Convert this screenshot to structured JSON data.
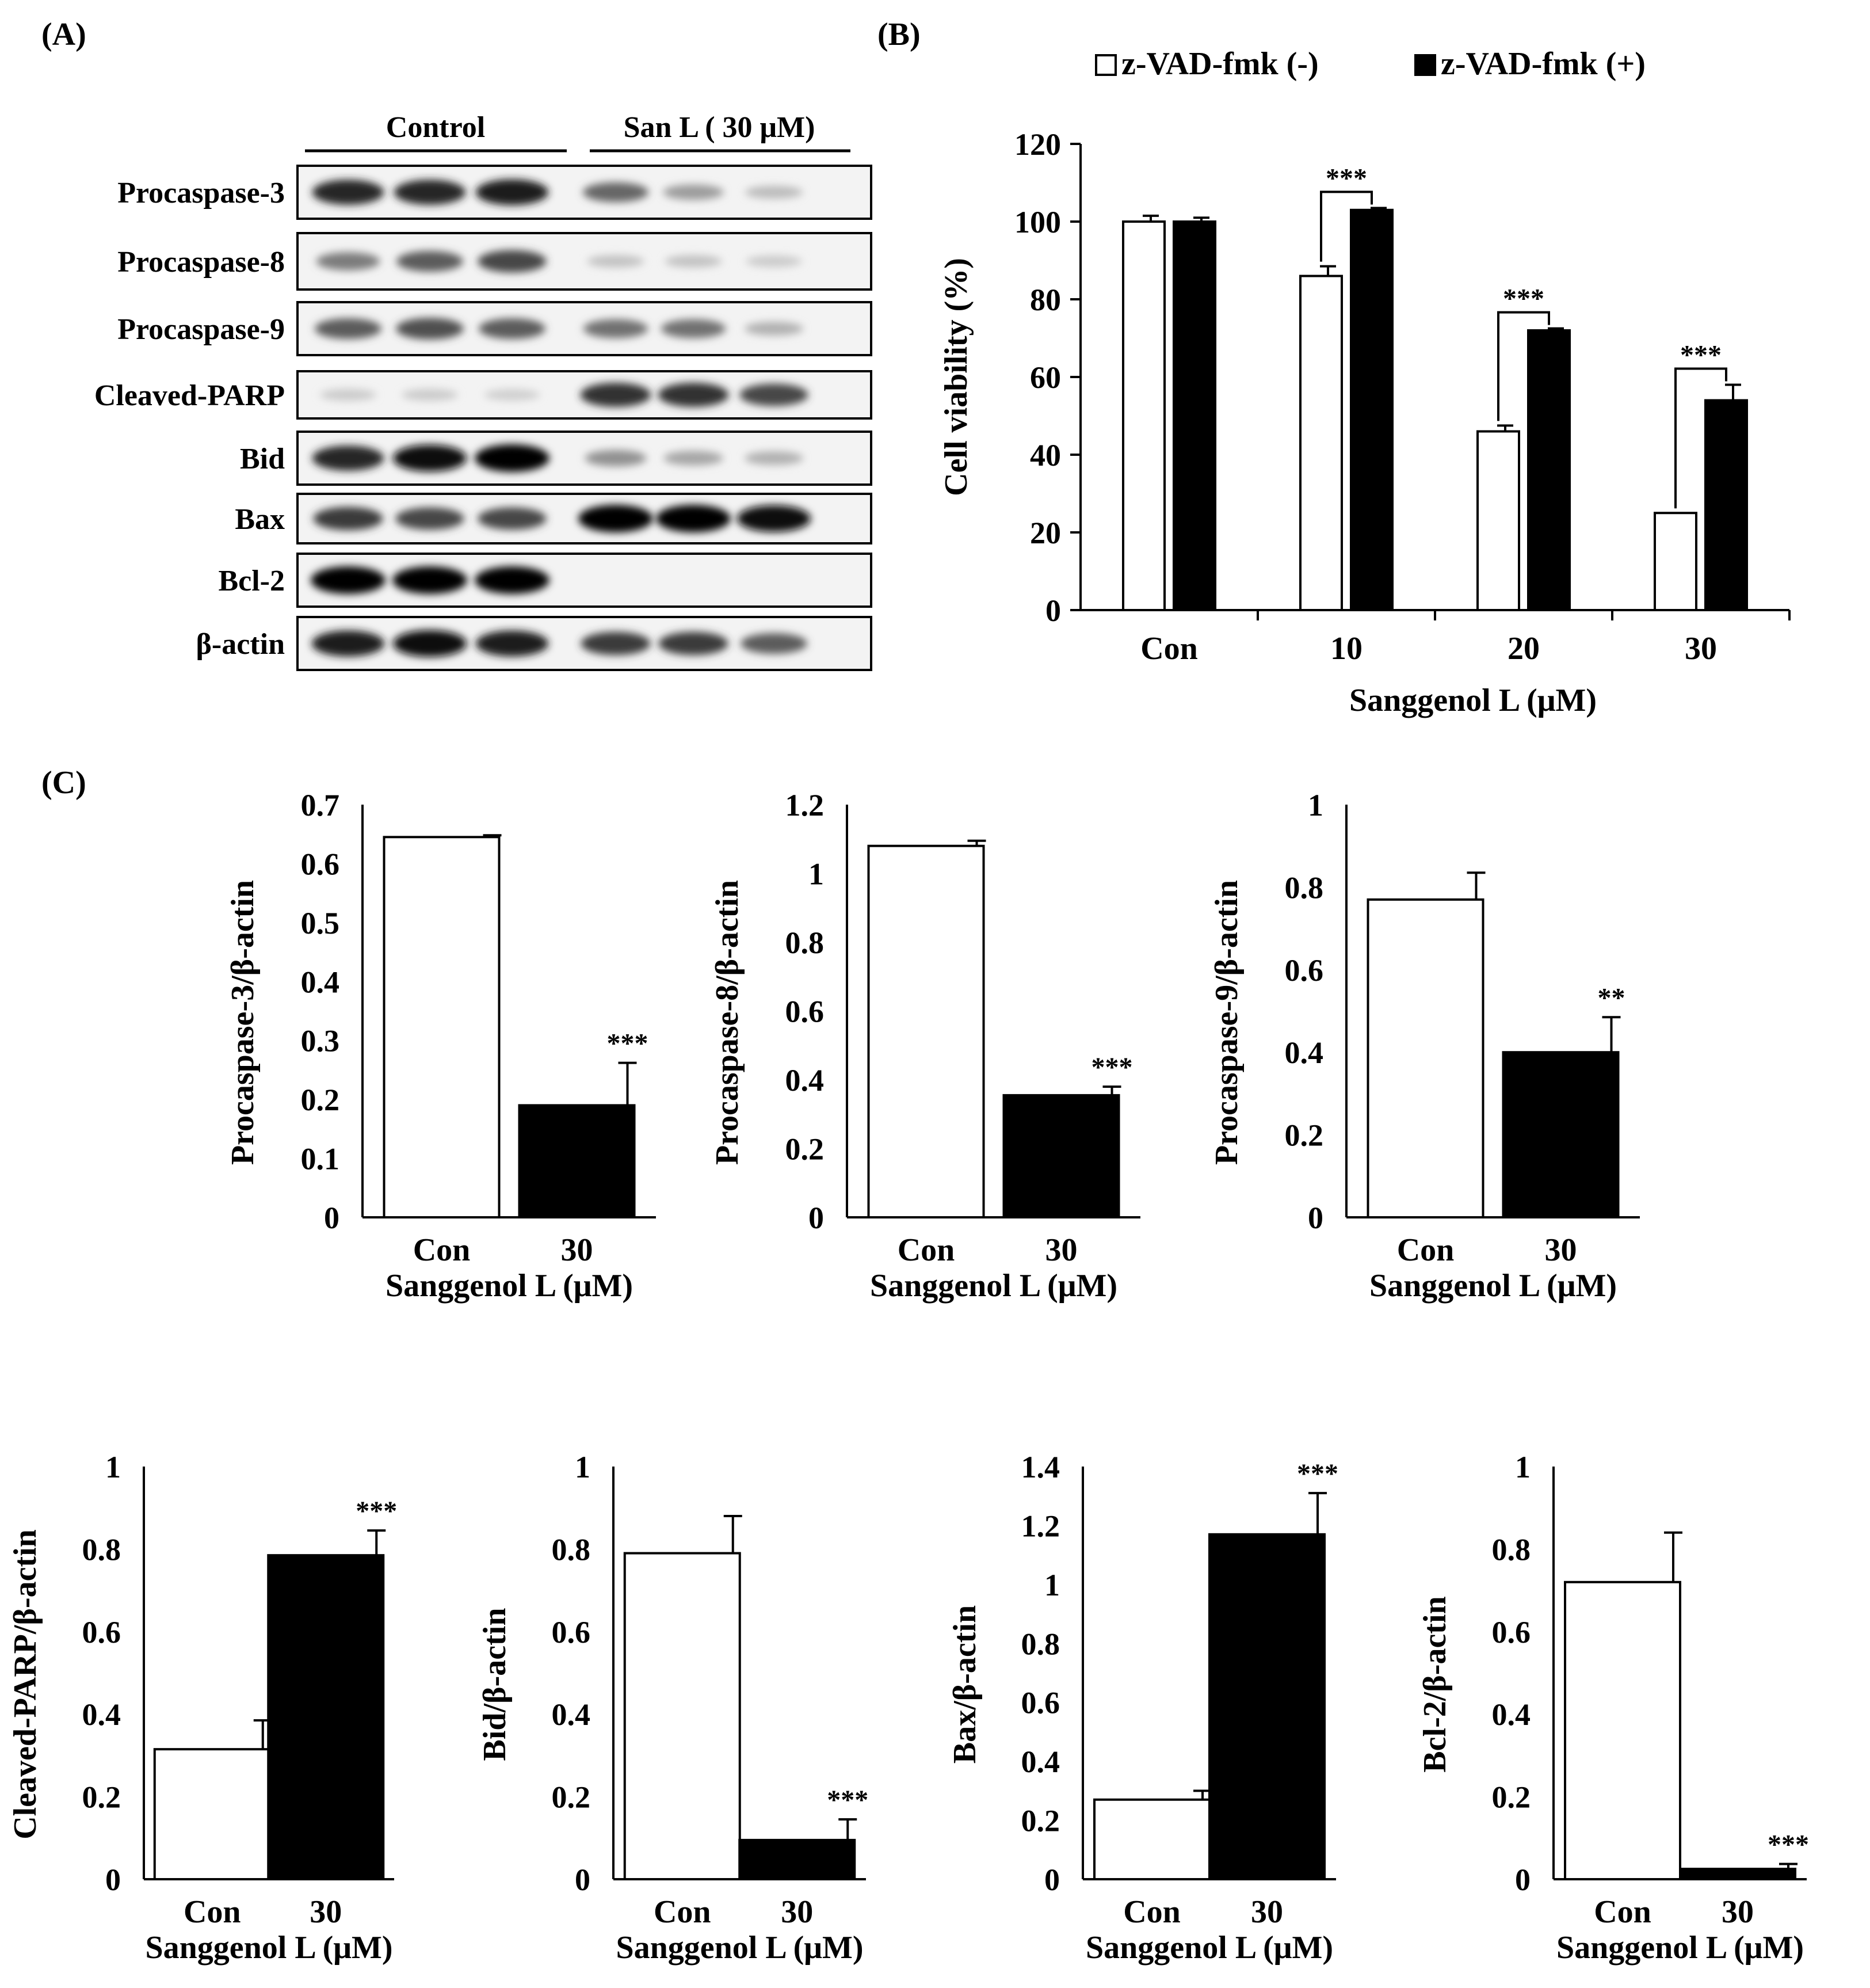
{
  "panel_labels": {
    "a": "(A)",
    "b": "(B)",
    "c": "(C)"
  },
  "western_blot": {
    "group_labels": [
      "Control",
      "San L ( 30 μM)"
    ],
    "rows": [
      {
        "label": "Procaspase-3",
        "lanes": [
          0.85,
          0.85,
          0.9,
          0.55,
          0.3,
          0.15
        ]
      },
      {
        "label": "Procaspase-8",
        "lanes": [
          0.45,
          0.6,
          0.7,
          0.12,
          0.12,
          0.08
        ]
      },
      {
        "label": "Procaspase-9",
        "lanes": [
          0.6,
          0.65,
          0.6,
          0.5,
          0.5,
          0.2
        ]
      },
      {
        "label": "Cleaved-PARP",
        "lanes": [
          0.08,
          0.08,
          0.06,
          0.8,
          0.8,
          0.7
        ]
      },
      {
        "label": "Bid",
        "lanes": [
          0.85,
          0.95,
          1.0,
          0.35,
          0.25,
          0.2
        ]
      },
      {
        "label": "Bax",
        "lanes": [
          0.75,
          0.7,
          0.7,
          1.0,
          1.0,
          0.95
        ]
      },
      {
        "label": "Bcl-2",
        "lanes": [
          1.0,
          1.0,
          1.0,
          0.0,
          0.0,
          0.0
        ]
      },
      {
        "label": "β-actin",
        "lanes": [
          0.9,
          0.95,
          0.9,
          0.75,
          0.75,
          0.6
        ]
      }
    ]
  },
  "chart_data": [
    {
      "type": "bar",
      "panel": "B",
      "categories": [
        "Con",
        "10",
        "20",
        "30"
      ],
      "series": [
        {
          "name": "z-VAD-fmk (-)",
          "color": "#ffffff",
          "values": [
            100,
            86,
            46,
            25
          ],
          "errors": [
            1.5,
            2.5,
            1.5,
            0
          ]
        },
        {
          "name": "z-VAD-fmk (+)",
          "color": "#000000",
          "values": [
            100,
            103,
            72,
            54
          ],
          "errors": [
            1,
            0.5,
            0.5,
            4
          ]
        }
      ],
      "significance": [
        {
          "category": "10",
          "label": "***"
        },
        {
          "category": "20",
          "label": "***"
        },
        {
          "category": "30",
          "label": "***"
        }
      ],
      "xlabel": "Sanggenol L (μM)",
      "ylabel": "Cell viability (%)",
      "ylim": [
        0,
        120
      ],
      "yticks": [
        "0",
        "20",
        "40",
        "60",
        "80",
        "100",
        "120"
      ],
      "legend": "top"
    },
    {
      "type": "bar",
      "panel": "C",
      "categories": [
        "Con",
        "30"
      ],
      "values": [
        0.645,
        0.19
      ],
      "errors": [
        0.003,
        0.072
      ],
      "colors": [
        "#ffffff",
        "#000000"
      ],
      "significance": [
        "",
        "***"
      ],
      "xlabel": "Sanggenol L (μM)",
      "ylabel": "Procaspase-3/β-actin",
      "ylim": [
        0,
        0.7
      ],
      "yticks": [
        "0",
        "0.1",
        "0.2",
        "0.3",
        "0.4",
        "0.5",
        "0.6",
        "0.7"
      ]
    },
    {
      "type": "bar",
      "panel": "C",
      "categories": [
        "Con",
        "30"
      ],
      "values": [
        1.08,
        0.355
      ],
      "errors": [
        0.015,
        0.025
      ],
      "colors": [
        "#ffffff",
        "#000000"
      ],
      "significance": [
        "",
        "***"
      ],
      "xlabel": "Sanggenol L (μM)",
      "ylabel": "Procaspase-8/β-actin",
      "ylim": [
        0,
        1.2
      ],
      "yticks": [
        "0",
        "0.2",
        "0.4",
        "0.6",
        "0.8",
        "1",
        "1.2"
      ]
    },
    {
      "type": "bar",
      "panel": "C",
      "categories": [
        "Con",
        "30"
      ],
      "values": [
        0.77,
        0.4
      ],
      "errors": [
        0.065,
        0.085
      ],
      "colors": [
        "#ffffff",
        "#000000"
      ],
      "significance": [
        "",
        "**"
      ],
      "xlabel": "Sanggenol L (μM)",
      "ylabel": "Procaspase-9/β-actin",
      "ylim": [
        0,
        1
      ],
      "yticks": [
        "0",
        "0.2",
        "0.4",
        "0.6",
        "0.8",
        "1"
      ]
    },
    {
      "type": "bar",
      "panel": "C",
      "categories": [
        "Con",
        "30"
      ],
      "values": [
        0.315,
        0.785
      ],
      "errors": [
        0.07,
        0.06
      ],
      "colors": [
        "#ffffff",
        "#000000"
      ],
      "significance": [
        "",
        "***"
      ],
      "xlabel": "Sanggenol L (μM)",
      "ylabel": "Cleaved-PARP/β-actin",
      "ylim": [
        0,
        1
      ],
      "yticks": [
        "0",
        "0.2",
        "0.4",
        "0.6",
        "0.8",
        "1"
      ]
    },
    {
      "type": "bar",
      "panel": "C",
      "categories": [
        "Con",
        "30"
      ],
      "values": [
        0.79,
        0.095
      ],
      "errors": [
        0.09,
        0.05
      ],
      "colors": [
        "#ffffff",
        "#000000"
      ],
      "significance": [
        "",
        "***"
      ],
      "xlabel": "Sanggenol L (μM)",
      "ylabel": "Bid/β-actin",
      "ylim": [
        0,
        1
      ],
      "yticks": [
        "0",
        "0.2",
        "0.4",
        "0.6",
        "0.8",
        "1"
      ]
    },
    {
      "type": "bar",
      "panel": "C",
      "categories": [
        "Con",
        "30"
      ],
      "values": [
        0.27,
        1.17
      ],
      "errors": [
        0.03,
        0.14
      ],
      "colors": [
        "#ffffff",
        "#000000"
      ],
      "significance": [
        "",
        "***"
      ],
      "xlabel": "Sanggenol L (μM)",
      "ylabel": "Bax/β-actin",
      "ylim": [
        0,
        1.4
      ],
      "yticks": [
        "0",
        "0.2",
        "0.4",
        "0.6",
        "0.8",
        "1",
        "1.2",
        "1.4"
      ]
    },
    {
      "type": "bar",
      "panel": "C",
      "categories": [
        "Con",
        "30"
      ],
      "values": [
        0.72,
        0.025
      ],
      "errors": [
        0.12,
        0.012
      ],
      "colors": [
        "#ffffff",
        "#000000"
      ],
      "significance": [
        "",
        "***"
      ],
      "xlabel": "Sanggenol L (μM)",
      "ylabel": "Bcl-2/β-actin",
      "ylim": [
        0,
        1
      ],
      "yticks": [
        "0",
        "0.2",
        "0.4",
        "0.6",
        "0.8",
        "1"
      ]
    }
  ]
}
